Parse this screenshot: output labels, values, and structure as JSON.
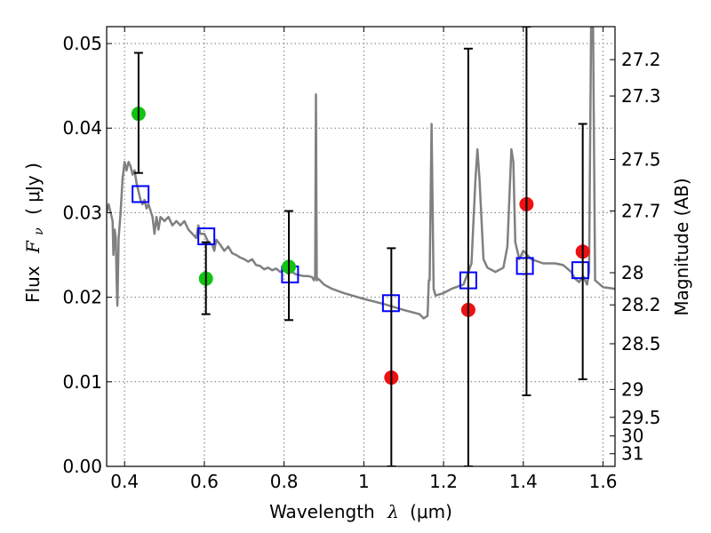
{
  "chart_data": {
    "type": "scatter",
    "xlabel_text": "Wavelength",
    "xlabel_symbol": "λ",
    "xlabel_unit": "(μm)",
    "ylabel_text": "Flux",
    "ylabel_symbol": "F",
    "ylabel_subscript": "ν",
    "ylabel_unit": "( μJy )",
    "y2label": "Magnitude (AB)",
    "xlim": [
      0.355,
      1.63
    ],
    "ylim": [
      0.0,
      0.052
    ],
    "x_ticks": [
      0.4,
      0.6,
      0.8,
      1.0,
      1.2,
      1.4,
      1.6
    ],
    "x_tick_labels": [
      "0.4",
      "0.6",
      "0.8",
      "1",
      "1.2",
      "1.4",
      "1.6"
    ],
    "y_ticks": [
      0.0,
      0.01,
      0.02,
      0.03,
      0.04,
      0.05
    ],
    "y_tick_labels": [
      "0.00",
      "0.01",
      "0.02",
      "0.03",
      "0.04",
      "0.05"
    ],
    "y2_ticks": [
      {
        "label": "27.2",
        "flux": 0.0481
      },
      {
        "label": "27.3",
        "flux": 0.0438
      },
      {
        "label": "27.5",
        "flux": 0.0363
      },
      {
        "label": "27.7",
        "flux": 0.0302
      },
      {
        "label": "28",
        "flux": 0.0229
      },
      {
        "label": "28.2",
        "flux": 0.0191
      },
      {
        "label": "28.5",
        "flux": 0.0145
      },
      {
        "label": "29",
        "flux": 0.0091
      },
      {
        "label": "29.5",
        "flux": 0.0058
      },
      {
        "label": "30",
        "flux": 0.0036
      },
      {
        "label": "31",
        "flux": 0.0015
      }
    ],
    "grid": true,
    "series": [
      {
        "kind": "line",
        "color": "#808080",
        "x": [
          0.355,
          0.36,
          0.365,
          0.37,
          0.372,
          0.375,
          0.378,
          0.38,
          0.382,
          0.385,
          0.39,
          0.395,
          0.4,
          0.405,
          0.41,
          0.415,
          0.42,
          0.425,
          0.43,
          0.435,
          0.44,
          0.445,
          0.45,
          0.455,
          0.46,
          0.47,
          0.475,
          0.48,
          0.485,
          0.49,
          0.5,
          0.51,
          0.52,
          0.53,
          0.54,
          0.55,
          0.56,
          0.57,
          0.58,
          0.585,
          0.59,
          0.6,
          0.61,
          0.62,
          0.625,
          0.63,
          0.64,
          0.65,
          0.66,
          0.67,
          0.68,
          0.69,
          0.7,
          0.71,
          0.72,
          0.73,
          0.74,
          0.75,
          0.76,
          0.77,
          0.78,
          0.79,
          0.8,
          0.81,
          0.82,
          0.83,
          0.84,
          0.85,
          0.86,
          0.87,
          0.875,
          0.878,
          0.88,
          0.882,
          0.885,
          0.89,
          0.9,
          0.92,
          0.95,
          1.0,
          1.05,
          1.1,
          1.14,
          1.15,
          1.16,
          1.163,
          1.165,
          1.17,
          1.175,
          1.18,
          1.2,
          1.22,
          1.25,
          1.27,
          1.28,
          1.285,
          1.29,
          1.3,
          1.31,
          1.33,
          1.35,
          1.36,
          1.37,
          1.375,
          1.38,
          1.39,
          1.4,
          1.42,
          1.45,
          1.48,
          1.5,
          1.52,
          1.53,
          1.54,
          1.55,
          1.56,
          1.565,
          1.57,
          1.575,
          1.58,
          1.6,
          1.63
        ],
        "y": [
          0.03,
          0.031,
          0.03,
          0.029,
          0.025,
          0.028,
          0.027,
          0.022,
          0.019,
          0.027,
          0.03,
          0.034,
          0.036,
          0.035,
          0.036,
          0.0355,
          0.0345,
          0.035,
          0.0335,
          0.0325,
          0.0315,
          0.031,
          0.0315,
          0.0305,
          0.031,
          0.0295,
          0.0275,
          0.0295,
          0.028,
          0.0295,
          0.029,
          0.0295,
          0.0285,
          0.029,
          0.0285,
          0.029,
          0.028,
          0.0275,
          0.027,
          0.0285,
          0.0275,
          0.0275,
          0.0265,
          0.0262,
          0.0255,
          0.0268,
          0.0262,
          0.0255,
          0.026,
          0.0252,
          0.025,
          0.0247,
          0.0245,
          0.0242,
          0.0245,
          0.0238,
          0.0237,
          0.0233,
          0.0235,
          0.0232,
          0.0234,
          0.023,
          0.0232,
          0.0228,
          0.023,
          0.0227,
          0.0226,
          0.0225,
          0.0225,
          0.0224,
          0.022,
          0.0225,
          0.044,
          0.022,
          0.0222,
          0.022,
          0.0215,
          0.021,
          0.0205,
          0.0198,
          0.0192,
          0.0185,
          0.018,
          0.0175,
          0.0178,
          0.022,
          0.022,
          0.0405,
          0.021,
          0.0202,
          0.0205,
          0.021,
          0.0215,
          0.024,
          0.034,
          0.0375,
          0.034,
          0.0245,
          0.0235,
          0.023,
          0.0235,
          0.026,
          0.0375,
          0.036,
          0.0265,
          0.0245,
          0.0255,
          0.0245,
          0.024,
          0.024,
          0.0238,
          0.023,
          0.0222,
          0.0218,
          0.0225,
          0.0215,
          0.023,
          0.052,
          0.052,
          0.022,
          0.0212,
          0.021
        ]
      },
      {
        "kind": "points",
        "marker": "square-open",
        "color": "#0000ff",
        "x": [
          0.44,
          0.605,
          0.815,
          1.068,
          1.262,
          1.404,
          1.543
        ],
        "y": [
          0.0322,
          0.0272,
          0.0227,
          0.0193,
          0.022,
          0.0237,
          0.0232
        ]
      },
      {
        "kind": "points",
        "marker": "circle",
        "color": "#11c411",
        "x": [
          0.435,
          0.604,
          0.812
        ],
        "y": [
          0.0417,
          0.0222,
          0.0236
        ]
      },
      {
        "kind": "points",
        "marker": "circle",
        "color": "#ee1111",
        "x": [
          1.069,
          1.262,
          1.408,
          1.549
        ],
        "y": [
          0.0105,
          0.0185,
          0.031,
          0.0254
        ]
      },
      {
        "kind": "errorbars",
        "color": "#000000",
        "x": [
          0.435,
          0.604,
          0.812,
          1.069,
          1.262,
          1.408,
          1.549
        ],
        "ylow": [
          0.0347,
          0.018,
          0.0173,
          0.0,
          0.0,
          0.0084,
          0.0103
        ],
        "yhigh": [
          0.0489,
          0.0265,
          0.0302,
          0.0258,
          0.0494,
          0.052,
          0.0405
        ]
      }
    ]
  }
}
